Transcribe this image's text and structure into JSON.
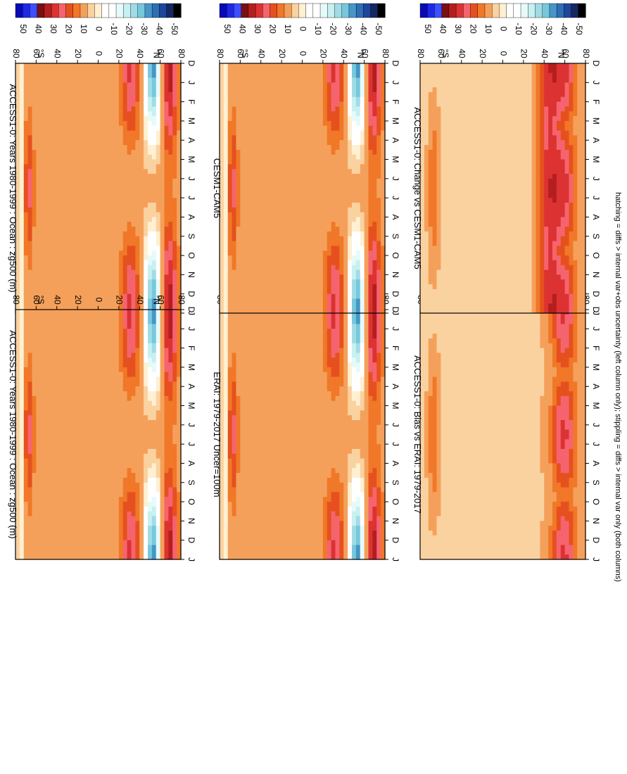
{
  "footnote": "hatching = diffs > internal var+obs uncertainty (left column only); stippling = diffs > internal var only (both columns)",
  "colorbar": {
    "labels": [
      "50",
      "40",
      "30",
      "20",
      "10",
      "0",
      "-10",
      "-20",
      "-30",
      "-40",
      "-50"
    ],
    "colors": [
      "#0a0ab4",
      "#1e28e6",
      "#3c50ff",
      "#780f14",
      "#b41e1e",
      "#dc3232",
      "#f5646e",
      "#e6501e",
      "#f07828",
      "#f5a05a",
      "#fad2a0",
      "#fff0d2",
      "#ffffff",
      "#ffffff",
      "#e6fafa",
      "#c8f0f0",
      "#a0dce6",
      "#78c8dc",
      "#4696c8",
      "#2d6eb4",
      "#1e469b",
      "#142864",
      "#000000"
    ]
  },
  "chart_data": [
    {
      "type": "heatmap",
      "title": "ACCESS1-0: Years 1980-1999 : Ocean : zg500 (m)",
      "xlabel": "",
      "ylabel": "",
      "x": [
        "D",
        "J",
        "F",
        "M",
        "A",
        "M",
        "J",
        "J",
        "A",
        "S",
        "O",
        "N",
        "D",
        "J"
      ],
      "y": [
        "80",
        "60",
        "40",
        "20",
        "0",
        "20",
        "40",
        "60",
        "80"
      ],
      "ylabels_hemisphere": [
        "°N",
        "°S"
      ],
      "colorbar_range": [
        -50,
        50
      ],
      "approx_bands": [
        {
          "lat": "65°N",
          "months": "Dec-Apr, Oct-Nov",
          "value": 25
        },
        {
          "lat": "50°N",
          "months": "Dec-May, Sep-Dec",
          "value": -35
        },
        {
          "lat": "25°N",
          "months": "Dec-Mar, Oct-Dec",
          "value": 20
        },
        {
          "lat": "75°S",
          "months": "Apr-Nov",
          "value": 15
        }
      ]
    },
    {
      "type": "heatmap",
      "title": "ACCESS1-0: Years 1980-1999 : Ocean : zg500 (m)",
      "xlabel": "",
      "ylabel": "",
      "x": [
        "D",
        "J",
        "F",
        "M",
        "A",
        "M",
        "J",
        "J",
        "A",
        "S",
        "O",
        "N",
        "D",
        "J"
      ],
      "y": [
        "80",
        "60",
        "40",
        "20",
        "0",
        "20",
        "40",
        "60",
        "80"
      ],
      "ylabels_hemisphere": [
        "°N",
        "°S"
      ],
      "colorbar_range": [
        -50,
        50
      ]
    },
    {
      "type": "heatmap",
      "title": "ERAI: 1979-2017 Uncer=100m",
      "xlabel": "",
      "ylabel": "",
      "x": [
        "D",
        "J",
        "F",
        "M",
        "A",
        "M",
        "J",
        "J",
        "A",
        "S",
        "O",
        "N",
        "D",
        "J"
      ],
      "y": [
        "80",
        "60",
        "40",
        "20",
        "0",
        "20",
        "40",
        "60",
        "80"
      ],
      "ylabels_hemisphere": [
        "°N",
        "°S"
      ],
      "colorbar_range": [
        -50,
        50
      ]
    },
    {
      "type": "heatmap",
      "title": "CESM1-CAM5",
      "xlabel": "",
      "ylabel": "",
      "x": [
        "D",
        "J",
        "F",
        "M",
        "A",
        "M",
        "J",
        "J",
        "A",
        "S",
        "O",
        "N",
        "D",
        "J"
      ],
      "y": [
        "80",
        "60",
        "40",
        "20",
        "0",
        "20",
        "40",
        "60",
        "80"
      ],
      "ylabels_hemisphere": [
        "°N",
        "°S"
      ],
      "colorbar_range": [
        -50,
        50
      ]
    },
    {
      "type": "heatmap",
      "title": "ACCESS1-0: Bias vs ERAI: 1979-2017",
      "xlabel": "",
      "ylabel": "",
      "x": [
        "D",
        "J",
        "F",
        "M",
        "A",
        "M",
        "J",
        "J",
        "A",
        "S",
        "O",
        "N",
        "D",
        "J"
      ],
      "y": [
        "80",
        "60",
        "40",
        "20",
        "0",
        "20",
        "40",
        "60",
        "80"
      ],
      "ylabels_hemisphere": [
        "°N",
        "°S"
      ],
      "colorbar_range": [
        -50,
        50
      ]
    },
    {
      "type": "heatmap",
      "title": "ACCESS1-0: Change vs CESM1-CAM5",
      "xlabel": "",
      "ylabel": "",
      "x": [
        "D",
        "J",
        "F",
        "M",
        "A",
        "M",
        "J",
        "J",
        "A",
        "S",
        "O",
        "N",
        "D",
        "J"
      ],
      "y": [
        "80",
        "60",
        "40",
        "20",
        "0",
        "20",
        "40",
        "60",
        "80"
      ],
      "ylabels_hemisphere": [
        "°N",
        "°S"
      ],
      "colorbar_range": [
        -50,
        50
      ]
    }
  ]
}
